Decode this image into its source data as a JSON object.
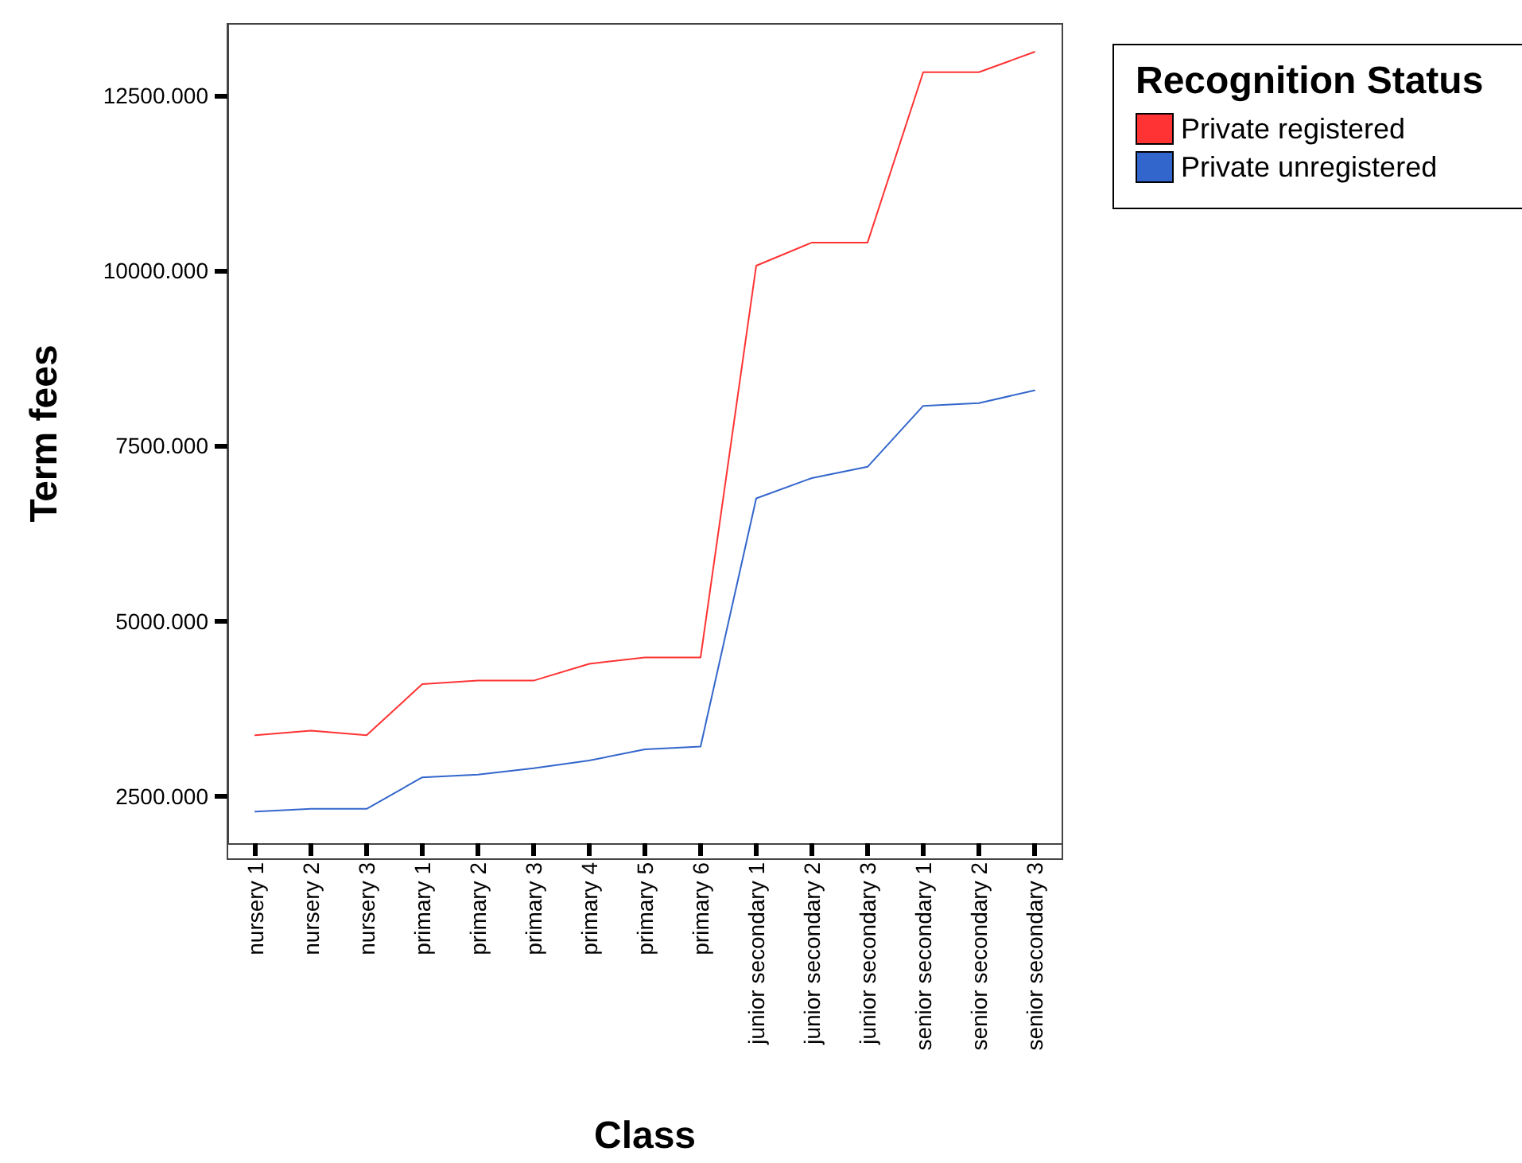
{
  "chart_data": {
    "type": "line",
    "xlabel": "Class",
    "ylabel": "Term fees",
    "legend_title": "Recognition Status",
    "legend": "top right",
    "grid": false,
    "marker": "none",
    "line_style": "solid",
    "categories": [
      "nursery 1",
      "nursery 2",
      "nursery 3",
      "primary 1",
      "primary 2",
      "primary 3",
      "primary 4",
      "primary 5",
      "primary 6",
      "junior secondary 1",
      "junior secondary 2",
      "junior secondary 3",
      "senior secondary 1",
      "senior secondary 2",
      "senior secondary 3"
    ],
    "ylim": [
      1830,
      13520
    ],
    "yticks": [
      {
        "value": 2500,
        "label": "2500.000"
      },
      {
        "value": 5000,
        "label": "5000.000"
      },
      {
        "value": 7500,
        "label": "7500.000"
      },
      {
        "value": 10000,
        "label": "10000.000"
      },
      {
        "value": 12500,
        "label": "12500.000"
      }
    ],
    "series": [
      {
        "name": "Private registered",
        "color": "#ff3333",
        "values": [
          3370,
          3435,
          3370,
          4100,
          4150,
          4150,
          4390,
          4480,
          4480,
          10070,
          10400,
          10400,
          12830,
          12830,
          13120
        ]
      },
      {
        "name": "Private unregistered",
        "color": "#3366cc",
        "values": [
          2280,
          2320,
          2320,
          2770,
          2810,
          2900,
          3010,
          3170,
          3210,
          6750,
          7040,
          7200,
          8070,
          8110,
          8290
        ]
      }
    ]
  }
}
